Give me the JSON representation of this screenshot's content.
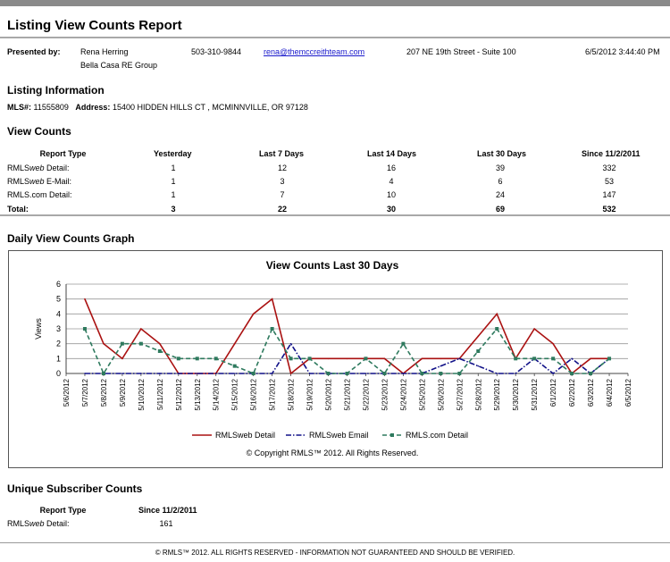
{
  "title": "Listing View Counts Report",
  "presenter": {
    "label": "Presented by:",
    "name": "Rena Herring",
    "company": "Bella Casa RE Group",
    "phone": "503-310-9844",
    "email": "rena@themccreithteam.com",
    "address": "207 NE 19th Street - Suite 100",
    "datetime": "6/5/2012 3:44:40 PM"
  },
  "listing_info": {
    "heading": "Listing Information",
    "mls_label": "MLS#:",
    "mls_value": "11555809",
    "address_label": "Address:",
    "address_value": "15400 HIDDEN HILLS CT , MCMINNVILLE, OR 97128"
  },
  "view_counts": {
    "heading": "View Counts",
    "headers": [
      "Report Type",
      "Yesterday",
      "Last 7 Days",
      "Last 14 Days",
      "Last 30 Days",
      "Since 11/2/2011"
    ],
    "rows": [
      {
        "type_pre": "RMLS",
        "type_em": "web",
        "type_post": " Detail:",
        "values": [
          "1",
          "12",
          "16",
          "39",
          "332"
        ]
      },
      {
        "type_pre": "RMLS",
        "type_em": "web",
        "type_post": " E-Mail:",
        "values": [
          "1",
          "3",
          "4",
          "6",
          "53"
        ]
      },
      {
        "type_pre": "RMLS.com Detail:",
        "type_em": "",
        "type_post": "",
        "values": [
          "1",
          "7",
          "10",
          "24",
          "147"
        ]
      }
    ],
    "total": {
      "label": "Total:",
      "values": [
        "3",
        "22",
        "30",
        "69",
        "532"
      ]
    }
  },
  "graph_section": {
    "heading": "Daily View Counts Graph"
  },
  "chart_data": {
    "type": "line",
    "title": "View Counts Last 30 Days",
    "ylabel": "Views",
    "xlabel": "",
    "ylim": [
      0,
      6
    ],
    "yticks": [
      "0",
      "1",
      "2",
      "3",
      "4",
      "5",
      "6"
    ],
    "grid": true,
    "legend_position": "bottom",
    "x": [
      "5/6/2012",
      "5/7/2012",
      "5/8/2012",
      "5/9/2012",
      "5/10/2012",
      "5/11/2012",
      "5/12/2012",
      "5/13/2012",
      "5/14/2012",
      "5/15/2012",
      "5/16/2012",
      "5/17/2012",
      "5/18/2012",
      "5/19/2012",
      "5/20/2012",
      "5/21/2012",
      "5/22/2012",
      "5/23/2012",
      "5/24/2012",
      "5/25/2012",
      "5/26/2012",
      "5/27/2012",
      "5/28/2012",
      "5/29/2012",
      "5/30/2012",
      "5/31/2012",
      "6/1/2012",
      "6/2/2012",
      "6/3/2012",
      "6/4/2012",
      "6/5/2012"
    ],
    "series": [
      {
        "name": "RMLSweb Detail",
        "color": "#aa1111",
        "dash": "solid",
        "marker": "none",
        "values": [
          null,
          5,
          2,
          1,
          3,
          2,
          0,
          0,
          0,
          2,
          4,
          5,
          0,
          1,
          1,
          1,
          1,
          1,
          0,
          1,
          1,
          1,
          2.5,
          4,
          1,
          3,
          2,
          0,
          1,
          1,
          null
        ]
      },
      {
        "name": "RMLSweb Email",
        "color": "#111188",
        "dash": "dashdot",
        "marker": "none",
        "values": [
          null,
          0,
          0,
          0,
          0,
          0,
          0,
          0,
          0,
          0,
          0,
          0,
          2,
          0,
          0,
          0,
          0,
          0,
          0,
          0,
          0.5,
          1,
          0.5,
          0,
          0,
          1,
          0,
          1,
          0,
          1,
          null
        ]
      },
      {
        "name": "RMLS.com Detail",
        "color": "#2e7a5e",
        "dash": "dashed",
        "marker": "square",
        "values": [
          null,
          3,
          0,
          2,
          2,
          1.5,
          1,
          1,
          1,
          0.5,
          0,
          3,
          1,
          1,
          0,
          0,
          1,
          0,
          2,
          0,
          0,
          0,
          1.5,
          3,
          1,
          1,
          1,
          0,
          0,
          1,
          null
        ]
      }
    ],
    "copyright": "© Copyright RMLS™ 2012.  All Rights Reserved."
  },
  "subscriber": {
    "heading": "Unique Subscriber Counts",
    "headers": [
      "Report Type",
      "Since 11/2/2011"
    ],
    "row": {
      "type_pre": "RMLS",
      "type_em": "web",
      "type_post": " Detail:",
      "value": "161"
    }
  },
  "footer": "© RMLS™ 2012. ALL RIGHTS RESERVED - INFORMATION NOT GUARANTEED AND SHOULD BE VERIFIED."
}
